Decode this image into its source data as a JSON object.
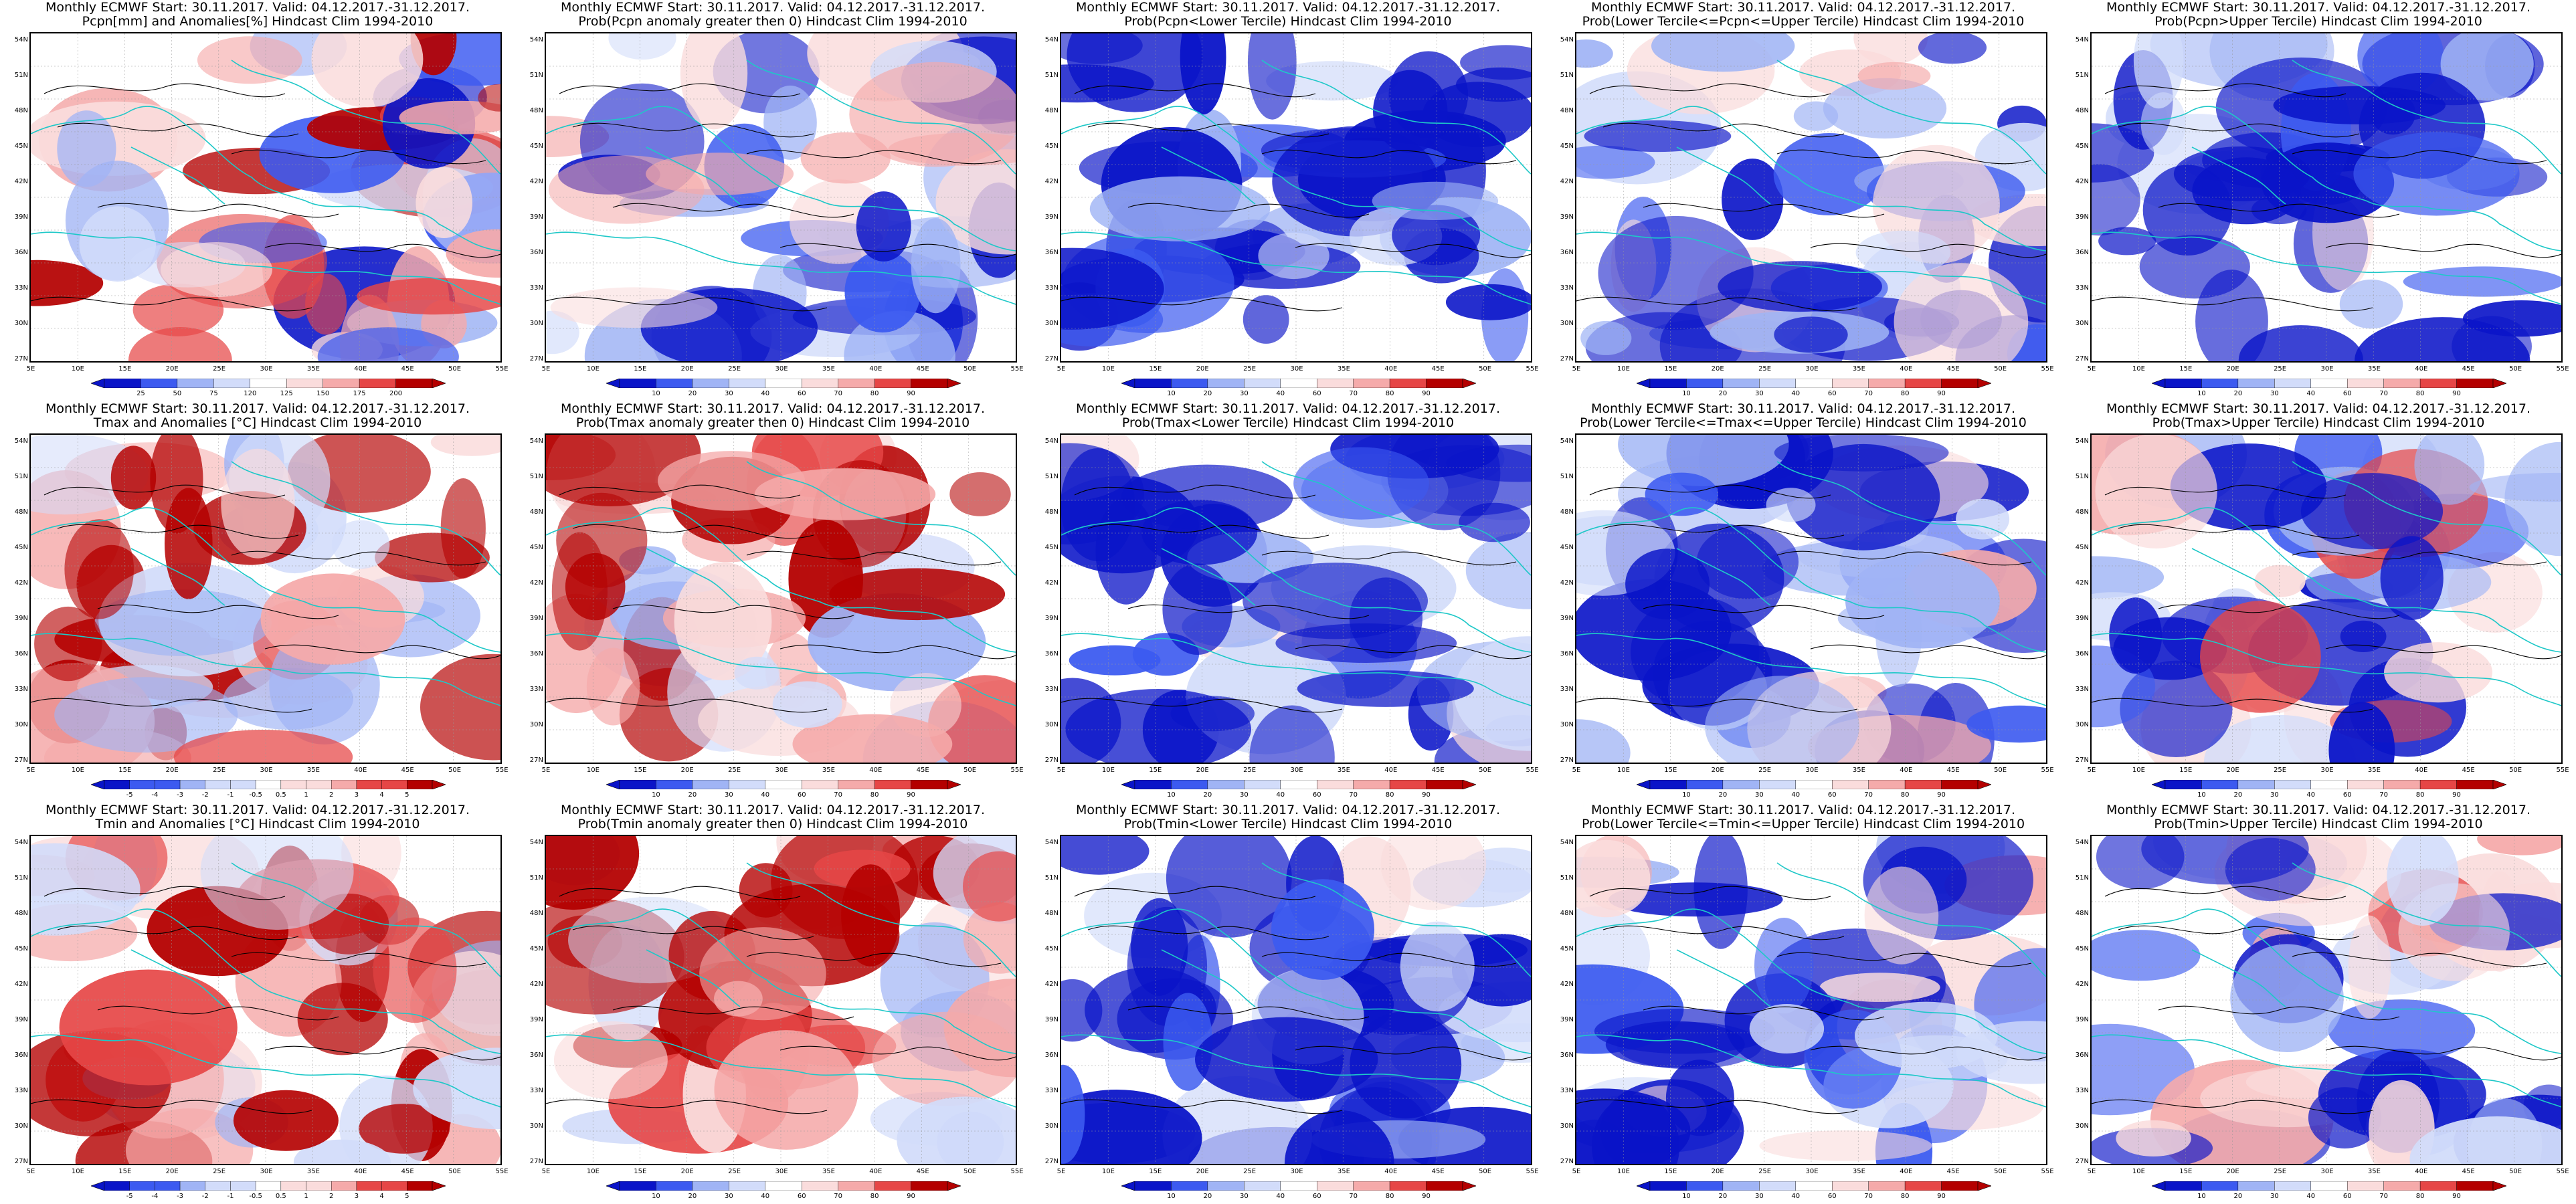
{
  "header": {
    "line1": "Monthly ECMWF Start: 30.11.2017. Valid: 04.12.2017.-31.12.2017."
  },
  "lat_labels": [
    "54N",
    "51N",
    "48N",
    "45N",
    "42N",
    "39N",
    "36N",
    "33N",
    "30N",
    "27N"
  ],
  "lon_labels": [
    "5E",
    "10E",
    "15E",
    "20E",
    "25E",
    "30E",
    "35E",
    "40E",
    "45E",
    "50E",
    "55E"
  ],
  "colors": {
    "blue_dark": "#0a14c8",
    "blue_mid": "#3c5af0",
    "blue_light": "#a0b4f5",
    "blue_pale": "#d2dcfa",
    "red_pale": "#fadcdc",
    "red_light": "#f5aaaa",
    "red_mid": "#e64646",
    "red_dark": "#b40000",
    "coast": "#1ec8c8",
    "contour": "#000000"
  },
  "panels": [
    {
      "title": "Pcpn[mm] and Anomalies[%] Hindcast Clim 1994-2010",
      "cbar_labels": [
        "25",
        "50",
        "75",
        "120",
        "125",
        "150",
        "175",
        "200"
      ],
      "scheme": "anom"
    },
    {
      "title": "Prob(Pcpn anomaly greater then 0) Hindcast Clim 1994-2010",
      "cbar_labels": [
        "10",
        "20",
        "30",
        "40",
        "60",
        "70",
        "80",
        "90"
      ],
      "scheme": "prob"
    },
    {
      "title": "Prob(Pcpn<Lower Tercile) Hindcast Clim 1994-2010",
      "cbar_labels": [
        "10",
        "20",
        "30",
        "40",
        "60",
        "70",
        "80",
        "90"
      ],
      "scheme": "prob"
    },
    {
      "title": "Prob(Lower Tercile<=Pcpn<=Upper Tercile) Hindcast Clim 1994-2010",
      "cbar_labels": [
        "10",
        "20",
        "30",
        "40",
        "60",
        "70",
        "80",
        "90"
      ],
      "scheme": "prob"
    },
    {
      "title": "Prob(Pcpn>Upper Tercile) Hindcast Clim 1994-2010",
      "cbar_labels": [
        "10",
        "20",
        "30",
        "40",
        "60",
        "70",
        "80",
        "90"
      ],
      "scheme": "prob"
    },
    {
      "title": "Tmax and Anomalies [°C] Hindcast Clim 1994-2010",
      "cbar_labels": [
        "-5",
        "-4",
        "-3",
        "-2",
        "-1",
        "-0.5",
        "0.5",
        "1",
        "2",
        "3",
        "4",
        "5"
      ],
      "scheme": "anom"
    },
    {
      "title": "Prob(Tmax anomaly greater then 0) Hindcast Clim 1994-2010",
      "cbar_labels": [
        "10",
        "20",
        "30",
        "40",
        "60",
        "70",
        "80",
        "90"
      ],
      "scheme": "prob"
    },
    {
      "title": "Prob(Tmax<Lower Tercile) Hindcast Clim 1994-2010",
      "cbar_labels": [
        "10",
        "20",
        "30",
        "40",
        "60",
        "70",
        "80",
        "90"
      ],
      "scheme": "prob"
    },
    {
      "title": "Prob(Lower Tercile<=Tmax<=Upper Tercile) Hindcast Clim 1994-2010",
      "cbar_labels": [
        "10",
        "20",
        "30",
        "40",
        "60",
        "70",
        "80",
        "90"
      ],
      "scheme": "prob"
    },
    {
      "title": "Prob(Tmax>Upper Tercile) Hindcast Clim 1994-2010",
      "cbar_labels": [
        "10",
        "20",
        "30",
        "40",
        "60",
        "70",
        "80",
        "90"
      ],
      "scheme": "prob"
    },
    {
      "title": "Tmin and Anomalies [°C] Hindcast Clim 1994-2010",
      "cbar_labels": [
        "-5",
        "-4",
        "-3",
        "-2",
        "-1",
        "-0.5",
        "0.5",
        "1",
        "2",
        "3",
        "4",
        "5"
      ],
      "scheme": "anom"
    },
    {
      "title": "Prob(Tmin anomaly greater then 0) Hindcast Clim 1994-2010",
      "cbar_labels": [
        "10",
        "20",
        "30",
        "40",
        "60",
        "70",
        "80",
        "90"
      ],
      "scheme": "prob"
    },
    {
      "title": "Prob(Tmin<Lower Tercile) Hindcast Clim 1994-2010",
      "cbar_labels": [
        "10",
        "20",
        "30",
        "40",
        "60",
        "70",
        "80",
        "90"
      ],
      "scheme": "prob"
    },
    {
      "title": "Prob(Lower Tercile<=Tmin<=Upper Tercile) Hindcast Clim 1994-2010",
      "cbar_labels": [
        "10",
        "20",
        "30",
        "40",
        "60",
        "70",
        "80",
        "90"
      ],
      "scheme": "prob"
    },
    {
      "title": "Prob(Tmin>Upper Tercile) Hindcast Clim 1994-2010",
      "cbar_labels": [
        "10",
        "20",
        "30",
        "40",
        "60",
        "70",
        "80",
        "90"
      ],
      "scheme": "prob"
    }
  ]
}
